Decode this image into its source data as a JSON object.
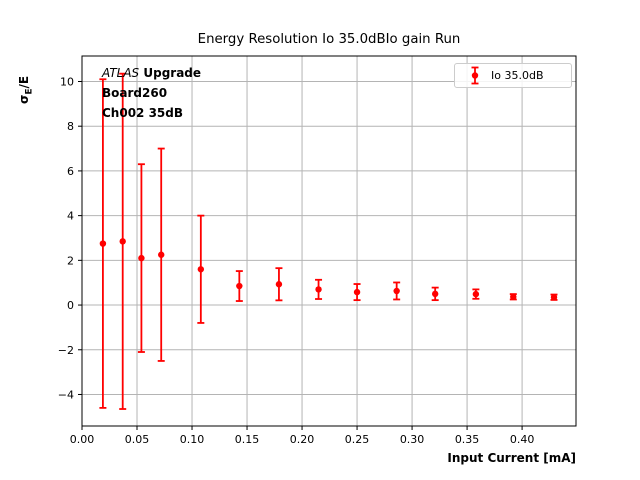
{
  "chart_data": {
    "type": "scatter",
    "title": "Energy Resolution Io 35.0dBIo gain Run",
    "xlabel": "Input Current [mA]",
    "ylabel": "σ_E/E",
    "ylabel_parts": {
      "sigma": "σ",
      "sub": "E",
      "rest": "/E"
    },
    "grid": true,
    "grid_color": "#b4b4b4",
    "xlim": [
      0.0,
      0.449
    ],
    "ylim": [
      -5.41,
      11.14
    ],
    "xticks": [
      0.0,
      0.05,
      0.1,
      0.15,
      0.2,
      0.25,
      0.3,
      0.35,
      0.4
    ],
    "xtick_labels": [
      "0.00",
      "0.05",
      "0.10",
      "0.15",
      "0.20",
      "0.25",
      "0.30",
      "0.35",
      "0.40"
    ],
    "yticks": [
      -4,
      -2,
      0,
      2,
      4,
      6,
      8,
      10
    ],
    "ytick_labels": [
      "−4",
      "−2",
      "0",
      "2",
      "4",
      "6",
      "8",
      "10"
    ],
    "legend": {
      "label": "Io 35.0dB",
      "position": "upper right"
    },
    "annotation": {
      "line1_italic": "ATLAS",
      "line1_bold": " Upgrade",
      "line2": "Board260",
      "line3": "Ch002 35dB"
    },
    "series": [
      {
        "name": "Io 35.0dB",
        "color": "#ff0000",
        "marker": "circle",
        "x": [
          0.019,
          0.037,
          0.054,
          0.072,
          0.108,
          0.143,
          0.179,
          0.215,
          0.25,
          0.286,
          0.321,
          0.358,
          0.392,
          0.429
        ],
        "y": [
          2.75,
          2.85,
          2.1,
          2.25,
          1.6,
          0.85,
          0.93,
          0.7,
          0.58,
          0.63,
          0.5,
          0.49,
          0.37,
          0.35
        ],
        "yerr": [
          7.35,
          7.5,
          4.2,
          4.75,
          2.4,
          0.67,
          0.72,
          0.43,
          0.36,
          0.38,
          0.28,
          0.21,
          0.12,
          0.12
        ]
      }
    ]
  }
}
